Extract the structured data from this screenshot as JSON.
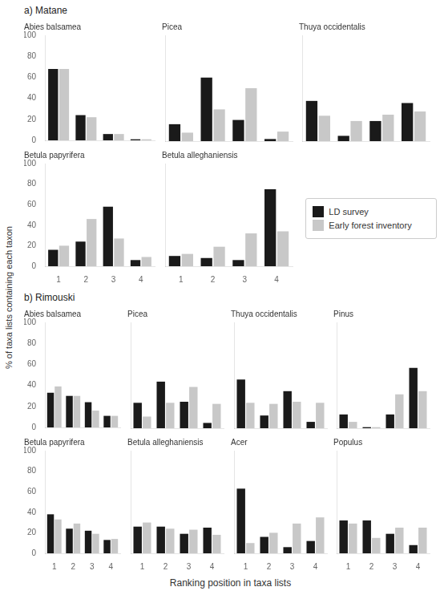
{
  "chart_data": [
    {
      "type": "bar",
      "title": "Abies balsamea",
      "annotations": [
        "a) Matane"
      ],
      "ylabel": "% of taxa lists containing each taxon",
      "categories": [
        "1",
        "2",
        "3",
        "4"
      ],
      "series": [
        {
          "name": "LD survey",
          "color": "#1a1a1a",
          "values": [
            68,
            24,
            6,
            1
          ]
        },
        {
          "name": "Early forest inventory",
          "color": "#c8c8c8",
          "values": [
            68,
            22,
            6,
            1
          ]
        }
      ],
      "ylim": [
        0,
        100
      ],
      "yticks": [
        0,
        20,
        40,
        60,
        80,
        100
      ],
      "grid": false,
      "tick_labels": "y"
    },
    {
      "type": "bar",
      "title": "Picea",
      "categories": [
        "1",
        "2",
        "3",
        "4"
      ],
      "series": [
        {
          "name": "LD survey",
          "color": "#1a1a1a",
          "values": [
            16,
            60,
            20,
            2
          ]
        },
        {
          "name": "Early forest inventory",
          "color": "#c8c8c8",
          "values": [
            8,
            30,
            50,
            9
          ]
        }
      ],
      "ylim": [
        0,
        100
      ],
      "yticks": [
        0,
        20,
        40,
        60,
        80,
        100
      ],
      "grid": false,
      "tick_labels": false
    },
    {
      "type": "bar",
      "title": "Thuya occidentalis",
      "categories": [
        "1",
        "2",
        "3",
        "4"
      ],
      "series": [
        {
          "name": "LD survey",
          "color": "#1a1a1a",
          "values": [
            38,
            5,
            19,
            36
          ]
        },
        {
          "name": "Early forest inventory",
          "color": "#c8c8c8",
          "values": [
            24,
            19,
            25,
            28
          ]
        }
      ],
      "ylim": [
        0,
        100
      ],
      "yticks": [
        0,
        20,
        40,
        60,
        80,
        100
      ],
      "grid": false,
      "tick_labels": false
    },
    {
      "type": "bar",
      "title": "Betula papyrifera",
      "categories": [
        "1",
        "2",
        "3",
        "4"
      ],
      "series": [
        {
          "name": "LD survey",
          "color": "#1a1a1a",
          "values": [
            16,
            24,
            58,
            6
          ]
        },
        {
          "name": "Early forest inventory",
          "color": "#c8c8c8",
          "values": [
            20,
            46,
            27,
            9
          ]
        }
      ],
      "ylim": [
        0,
        100
      ],
      "yticks": [
        0,
        20,
        40,
        60,
        80,
        100
      ],
      "grid": false
    },
    {
      "type": "bar",
      "title": "Betula alleghaniensis",
      "categories": [
        "1",
        "2",
        "3",
        "4"
      ],
      "series": [
        {
          "name": "LD survey",
          "color": "#1a1a1a",
          "values": [
            10,
            8,
            6,
            75
          ]
        },
        {
          "name": "Early forest inventory",
          "color": "#c8c8c8",
          "values": [
            12,
            19,
            32,
            34
          ]
        }
      ],
      "ylim": [
        0,
        100
      ],
      "yticks": [
        0,
        20,
        40,
        60,
        80,
        100
      ],
      "grid": false,
      "tick_labels": "x",
      "legend": "right"
    },
    {
      "type": "bar",
      "title": "Abies balsamea",
      "annotations": [
        "b) Rimouski"
      ],
      "categories": [
        "1",
        "2",
        "3",
        "4"
      ],
      "series": [
        {
          "name": "LD survey",
          "color": "#1a1a1a",
          "values": [
            33,
            30,
            24,
            11
          ]
        },
        {
          "name": "Early forest inventory",
          "color": "#c8c8c8",
          "values": [
            39,
            30,
            16,
            11
          ]
        }
      ],
      "ylim": [
        0,
        100
      ],
      "yticks": [
        0,
        20,
        40,
        60,
        80,
        100
      ],
      "grid": false,
      "tick_labels": "y"
    },
    {
      "type": "bar",
      "title": "Picea",
      "categories": [
        "1",
        "2",
        "3",
        "4"
      ],
      "series": [
        {
          "name": "LD survey",
          "color": "#1a1a1a",
          "values": [
            24,
            44,
            25,
            5
          ]
        },
        {
          "name": "Early forest inventory",
          "color": "#c8c8c8",
          "values": [
            11,
            24,
            39,
            23
          ]
        }
      ],
      "ylim": [
        0,
        100
      ],
      "yticks": [
        0,
        20,
        40,
        60,
        80,
        100
      ],
      "grid": false,
      "tick_labels": false
    },
    {
      "type": "bar",
      "title": "Thuya occidentalis",
      "categories": [
        "1",
        "2",
        "3",
        "4"
      ],
      "series": [
        {
          "name": "LD survey",
          "color": "#1a1a1a",
          "values": [
            46,
            12,
            35,
            6
          ]
        },
        {
          "name": "Early forest inventory",
          "color": "#c8c8c8",
          "values": [
            24,
            23,
            25,
            24
          ]
        }
      ],
      "ylim": [
        0,
        100
      ],
      "yticks": [
        0,
        20,
        40,
        60,
        80,
        100
      ],
      "grid": false,
      "tick_labels": false
    },
    {
      "type": "bar",
      "title": "Pinus",
      "categories": [
        "1",
        "2",
        "3",
        "4"
      ],
      "series": [
        {
          "name": "LD survey",
          "color": "#1a1a1a",
          "values": [
            13,
            1,
            13,
            57
          ]
        },
        {
          "name": "Early forest inventory",
          "color": "#c8c8c8",
          "values": [
            6,
            1,
            32,
            35
          ]
        }
      ],
      "ylim": [
        0,
        100
      ],
      "yticks": [
        0,
        20,
        40,
        60,
        80,
        100
      ],
      "grid": false,
      "tick_labels": false
    },
    {
      "type": "bar",
      "title": "Betula papyrifera",
      "xlabel": "Ranking position in taxa lists",
      "categories": [
        "1",
        "2",
        "3",
        "4"
      ],
      "series": [
        {
          "name": "LD survey",
          "color": "#1a1a1a",
          "values": [
            38,
            24,
            22,
            13
          ]
        },
        {
          "name": "Early forest inventory",
          "color": "#c8c8c8",
          "values": [
            33,
            29,
            19,
            14
          ]
        }
      ],
      "ylim": [
        0,
        100
      ],
      "yticks": [
        0,
        20,
        40,
        60,
        80,
        100
      ],
      "grid": false
    },
    {
      "type": "bar",
      "title": "Betula alleghaniensis",
      "categories": [
        "1",
        "2",
        "3",
        "4"
      ],
      "series": [
        {
          "name": "LD survey",
          "color": "#1a1a1a",
          "values": [
            26,
            26,
            19,
            25
          ]
        },
        {
          "name": "Early forest inventory",
          "color": "#c8c8c8",
          "values": [
            30,
            24,
            23,
            18
          ]
        }
      ],
      "ylim": [
        0,
        100
      ],
      "yticks": [
        0,
        20,
        40,
        60,
        80,
        100
      ],
      "grid": false,
      "tick_labels": "x"
    },
    {
      "type": "bar",
      "title": "Acer",
      "categories": [
        "1",
        "2",
        "3",
        "4"
      ],
      "series": [
        {
          "name": "LD survey",
          "color": "#1a1a1a",
          "values": [
            63,
            16,
            6,
            12
          ]
        },
        {
          "name": "Early forest inventory",
          "color": "#c8c8c8",
          "values": [
            10,
            20,
            29,
            35
          ]
        }
      ],
      "ylim": [
        0,
        100
      ],
      "yticks": [
        0,
        20,
        40,
        60,
        80,
        100
      ],
      "grid": false,
      "tick_labels": "x"
    },
    {
      "type": "bar",
      "title": "Populus",
      "categories": [
        "1",
        "2",
        "3",
        "4"
      ],
      "series": [
        {
          "name": "LD survey",
          "color": "#1a1a1a",
          "values": [
            32,
            32,
            19,
            8
          ]
        },
        {
          "name": "Early forest inventory",
          "color": "#c8c8c8",
          "values": [
            29,
            15,
            25,
            25
          ]
        }
      ],
      "ylim": [
        0,
        100
      ],
      "yticks": [
        0,
        20,
        40,
        60,
        80,
        100
      ],
      "grid": false,
      "tick_labels": "x"
    }
  ]
}
